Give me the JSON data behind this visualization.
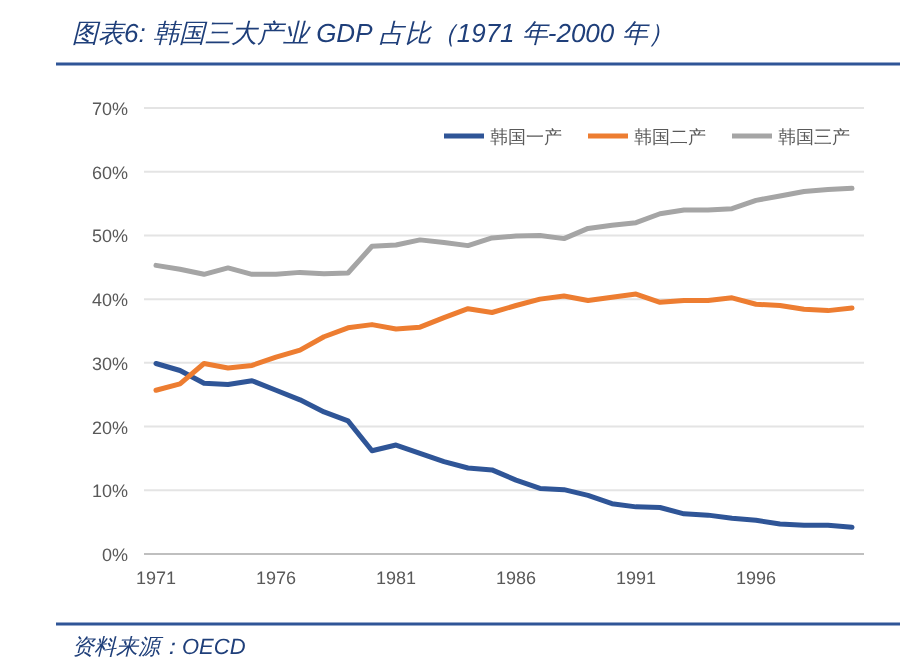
{
  "chart_data": {
    "type": "line",
    "title": "图表6: 韩国三大产业 GDP 占比（1971 年-2000 年）",
    "annotations": [
      "资料来源：OECD"
    ],
    "categories": [
      "1971",
      null,
      null,
      null,
      null,
      "1976",
      null,
      null,
      null,
      null,
      "1981",
      null,
      null,
      null,
      null,
      "1986",
      null,
      null,
      null,
      null,
      "1991",
      null,
      null,
      null,
      null,
      "1996",
      null,
      null,
      null,
      null
    ],
    "series": [
      {
        "name": "韩国一产",
        "color": "#2f5597",
        "values": [
          29.9,
          28.8,
          26.8,
          26.6,
          27.2,
          25.7,
          24.2,
          22.3,
          20.9,
          16.2,
          17.1,
          15.8,
          14.5,
          13.5,
          13.2,
          11.6,
          10.3,
          10.1,
          9.2,
          7.9,
          7.4,
          7.3,
          6.3,
          6.1,
          5.6,
          5.3,
          4.7,
          4.5,
          4.5,
          4.2
        ]
      },
      {
        "name": "韩国二产",
        "color": "#ed7d31",
        "values": [
          25.7,
          26.7,
          29.9,
          29.2,
          29.6,
          30.9,
          32.0,
          34.1,
          35.5,
          36.0,
          35.3,
          35.6,
          37.1,
          38.5,
          37.9,
          39.0,
          40.0,
          40.5,
          39.8,
          40.3,
          40.8,
          39.5,
          39.8,
          39.8,
          40.2,
          39.2,
          39.0,
          38.4,
          38.2,
          38.6
        ]
      },
      {
        "name": "韩国三产",
        "color": "#a5a5a5",
        "values": [
          45.3,
          44.7,
          43.9,
          44.9,
          43.9,
          43.9,
          44.2,
          44.0,
          44.1,
          48.3,
          48.5,
          49.3,
          48.9,
          48.4,
          49.6,
          49.9,
          50.0,
          49.5,
          51.1,
          51.6,
          52.0,
          53.4,
          54.0,
          54.0,
          54.2,
          55.5,
          56.2,
          56.9,
          57.2,
          57.4
        ]
      }
    ],
    "ylim": [
      0,
      70
    ],
    "yticks": [
      {
        "value": 0,
        "label": "0%"
      },
      {
        "value": 10,
        "label": "10%"
      },
      {
        "value": 20,
        "label": "20%"
      },
      {
        "value": 30,
        "label": "30%"
      },
      {
        "value": 40,
        "label": "40%"
      },
      {
        "value": 50,
        "label": "50%"
      },
      {
        "value": 60,
        "label": "60%"
      },
      {
        "value": 70,
        "label": "70%"
      }
    ],
    "grid": "y",
    "legend": "top right"
  }
}
